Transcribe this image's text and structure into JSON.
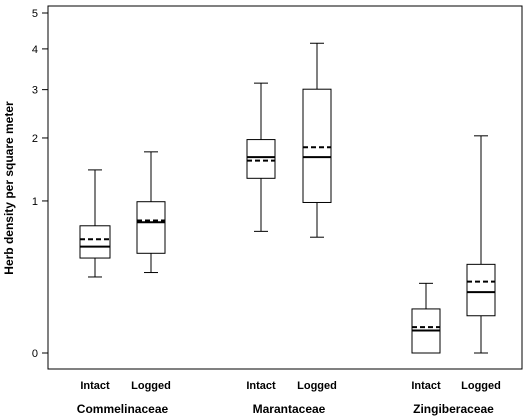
{
  "chart_data": {
    "type": "box",
    "title": "",
    "xlabel": "",
    "ylabel": "Herb density per square meter",
    "y_ticks": [
      "0",
      "1",
      "2",
      "3",
      "4",
      "5"
    ],
    "y_tick_values": [
      0,
      1,
      2,
      3,
      4,
      5
    ],
    "y_scale": "sqrt",
    "ylim": [
      0,
      5
    ],
    "grid": false,
    "groups": [
      {
        "name": "Commelinaceae",
        "boxes": [
          {
            "category": "Intact",
            "whisker_low": 0.25,
            "q1": 0.39,
            "median": 0.49,
            "mean": 0.56,
            "q3": 0.7,
            "whisker_high": 1.45
          },
          {
            "category": "Logged",
            "whisker_low": 0.28,
            "q1": 0.43,
            "median": 0.74,
            "mean": 0.76,
            "q3": 0.99,
            "whisker_high": 1.75
          }
        ]
      },
      {
        "name": "Marantaceae",
        "boxes": [
          {
            "category": "Intact",
            "whisker_low": 0.64,
            "q1": 1.32,
            "median": 1.66,
            "mean": 1.6,
            "q3": 1.97,
            "whisker_high": 3.15
          },
          {
            "category": "Logged",
            "whisker_low": 0.58,
            "q1": 0.98,
            "median": 1.66,
            "mean": 1.83,
            "q3": 3.01,
            "whisker_high": 4.15
          }
        ]
      },
      {
        "name": "Zingiberaceae",
        "boxes": [
          {
            "category": "Intact",
            "whisker_low": 0.0,
            "q1": 0.0,
            "median": 0.022,
            "mean": 0.029,
            "q3": 0.084,
            "whisker_high": 0.21
          },
          {
            "category": "Logged",
            "whisker_low": 0.0,
            "q1": 0.06,
            "median": 0.16,
            "mean": 0.22,
            "q3": 0.34,
            "whisker_high": 2.04
          }
        ]
      }
    ],
    "legend": {
      "solid": "median",
      "dashed": "mean"
    }
  }
}
